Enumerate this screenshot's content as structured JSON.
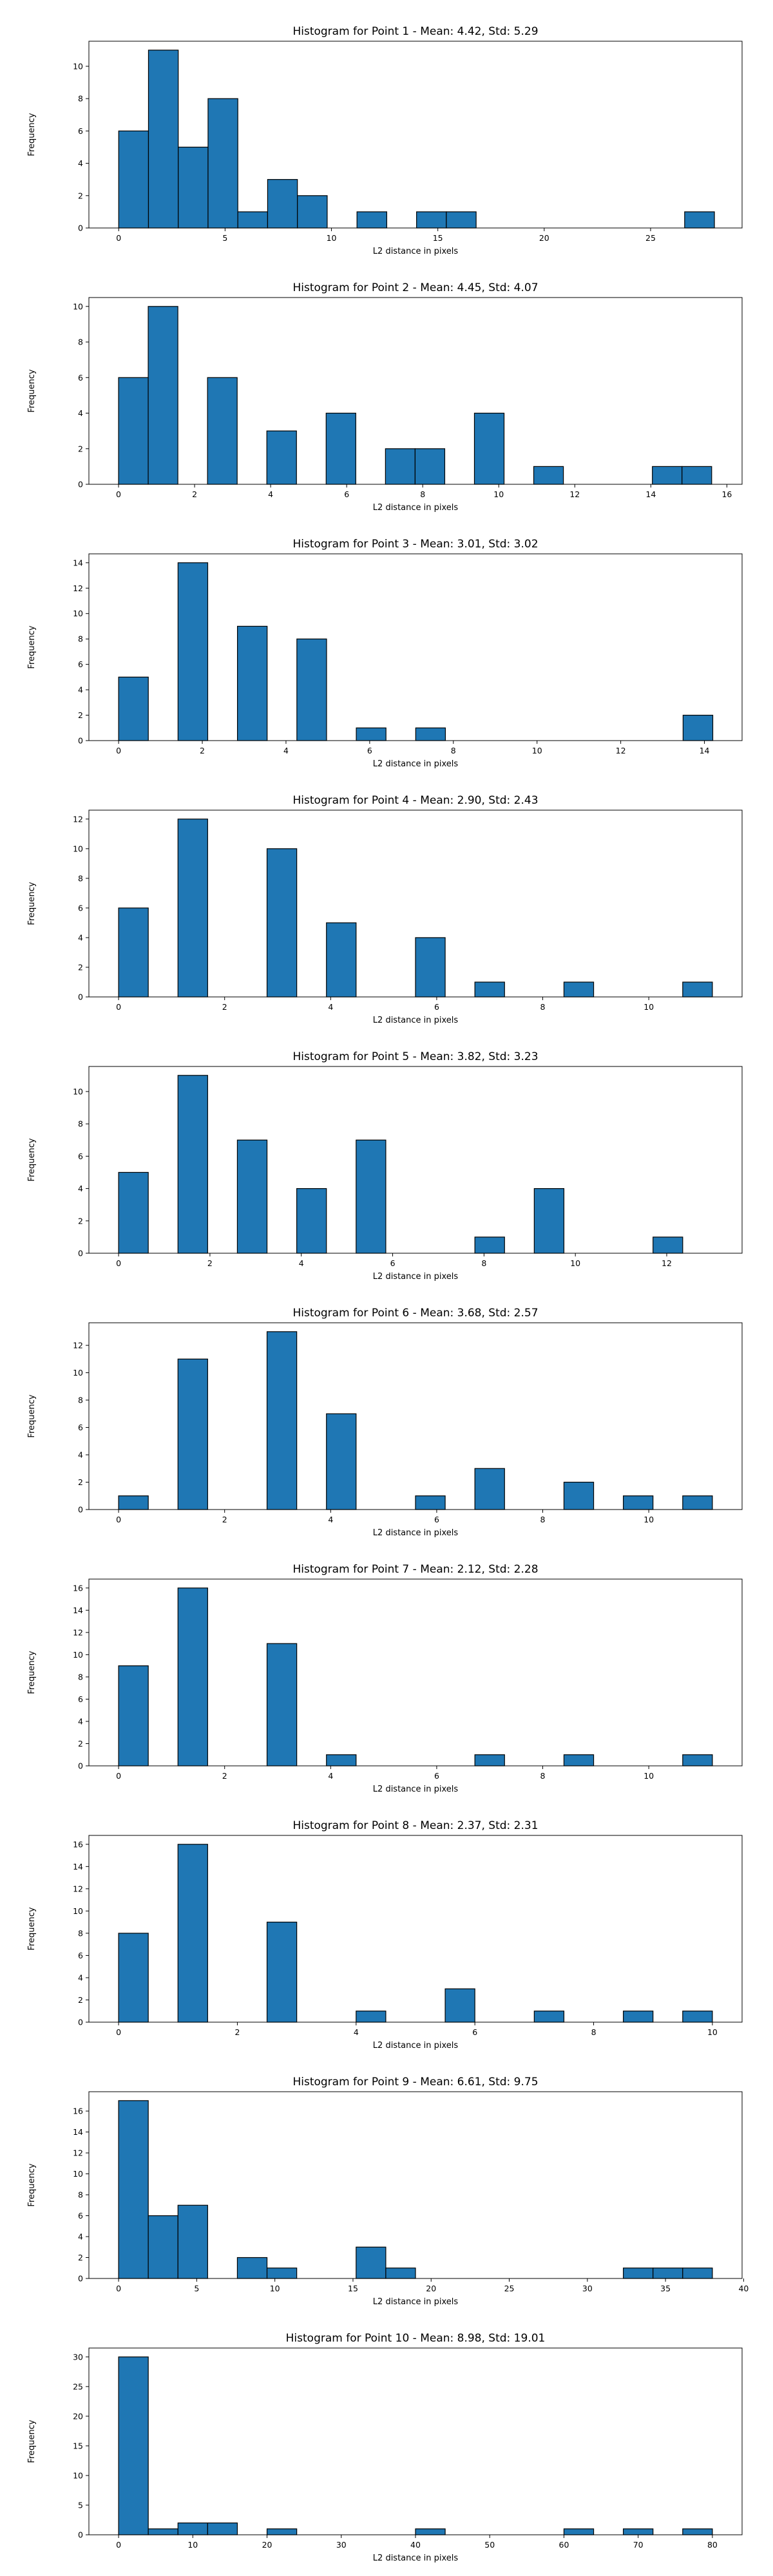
{
  "colors": {
    "bar": "#1f77b4",
    "edge": "#000000"
  },
  "chart_data": [
    {
      "type": "bar",
      "title": "Histogram for Point 1 - Mean: 4.42, Std: 5.29",
      "xlabel": "L2 distance in pixels",
      "ylabel": "Frequency",
      "xlim": [
        -1.4,
        29.3
      ],
      "ylim": [
        0,
        11.55
      ],
      "xticks": [
        0,
        5,
        10,
        15,
        20,
        25
      ],
      "yticks": [
        0,
        2,
        4,
        6,
        8,
        10
      ],
      "bin_edges": [
        0.0,
        1.4,
        2.8,
        4.2,
        5.6,
        7.0,
        8.4,
        9.8,
        11.2,
        12.6,
        14.0,
        15.4,
        16.8,
        18.2,
        19.6,
        21.0,
        22.4,
        23.8,
        25.2,
        26.6,
        28.0
      ],
      "values": [
        6,
        11,
        5,
        8,
        1,
        3,
        2,
        0,
        1,
        0,
        1,
        1,
        0,
        0,
        0,
        0,
        0,
        0,
        0,
        1
      ]
    },
    {
      "type": "bar",
      "title": "Histogram for Point 2 - Mean: 4.45, Std: 4.07",
      "xlabel": "L2 distance in pixels",
      "ylabel": "Frequency",
      "xlim": [
        -0.78,
        16.4
      ],
      "ylim": [
        0,
        10.5
      ],
      "xticks": [
        0,
        2,
        4,
        6,
        8,
        10,
        12,
        14,
        16
      ],
      "yticks": [
        0,
        2,
        4,
        6,
        8,
        10
      ],
      "bin_edges": [
        0.0,
        0.78,
        1.56,
        2.34,
        3.12,
        3.9,
        4.68,
        5.46,
        6.24,
        7.02,
        7.8,
        8.58,
        9.36,
        10.14,
        10.92,
        11.7,
        12.48,
        13.26,
        14.04,
        14.82,
        15.6
      ],
      "values": [
        6,
        10,
        0,
        6,
        0,
        3,
        0,
        4,
        0,
        2,
        2,
        0,
        4,
        0,
        1,
        0,
        0,
        0,
        1,
        1
      ]
    },
    {
      "type": "bar",
      "title": "Histogram for Point 3 - Mean: 3.01, Std: 3.02",
      "xlabel": "L2 distance in pixels",
      "ylabel": "Frequency",
      "xlim": [
        -0.71,
        14.9
      ],
      "ylim": [
        0,
        14.7
      ],
      "xticks": [
        0,
        2,
        4,
        6,
        8,
        10,
        12,
        14
      ],
      "yticks": [
        0,
        2,
        4,
        6,
        8,
        10,
        12,
        14
      ],
      "bin_edges": [
        0.0,
        0.71,
        1.42,
        2.13,
        2.84,
        3.55,
        4.26,
        4.97,
        5.68,
        6.39,
        7.1,
        7.81,
        8.52,
        9.23,
        9.94,
        10.65,
        11.36,
        12.07,
        12.78,
        13.49,
        14.2
      ],
      "values": [
        5,
        0,
        14,
        0,
        9,
        0,
        8,
        0,
        1,
        0,
        1,
        0,
        0,
        0,
        0,
        0,
        0,
        0,
        0,
        2
      ]
    },
    {
      "type": "bar",
      "title": "Histogram for Point 4 - Mean: 2.90, Std: 2.43",
      "xlabel": "L2 distance in pixels",
      "ylabel": "Frequency",
      "xlim": [
        -0.56,
        11.76
      ],
      "ylim": [
        0,
        12.6
      ],
      "xticks": [
        0,
        2,
        4,
        6,
        8,
        10
      ],
      "yticks": [
        0,
        2,
        4,
        6,
        8,
        10,
        12
      ],
      "bin_edges": [
        0.0,
        0.56,
        1.12,
        1.68,
        2.24,
        2.8,
        3.36,
        3.92,
        4.48,
        5.04,
        5.6,
        6.16,
        6.72,
        7.28,
        7.84,
        8.4,
        8.96,
        9.52,
        10.08,
        10.64,
        11.2
      ],
      "values": [
        6,
        0,
        12,
        0,
        0,
        10,
        0,
        5,
        0,
        0,
        4,
        0,
        1,
        0,
        0,
        1,
        0,
        0,
        0,
        1
      ]
    },
    {
      "type": "bar",
      "title": "Histogram for Point 5 - Mean: 3.82, Std: 3.23",
      "xlabel": "L2 distance in pixels",
      "ylabel": "Frequency",
      "xlim": [
        -0.65,
        13.65
      ],
      "ylim": [
        0,
        11.55
      ],
      "xticks": [
        0,
        2,
        4,
        6,
        8,
        10,
        12
      ],
      "yticks": [
        0,
        2,
        4,
        6,
        8,
        10
      ],
      "bin_edges": [
        0.0,
        0.65,
        1.3,
        1.95,
        2.6,
        3.25,
        3.9,
        4.55,
        5.2,
        5.85,
        6.5,
        7.15,
        7.8,
        8.45,
        9.1,
        9.75,
        10.4,
        11.05,
        11.7,
        12.35,
        13.0
      ],
      "values": [
        5,
        0,
        11,
        0,
        7,
        0,
        4,
        0,
        7,
        0,
        0,
        0,
        1,
        0,
        4,
        0,
        0,
        0,
        1,
        0
      ]
    },
    {
      "type": "bar",
      "title": "Histogram for Point 6 - Mean: 3.68, Std: 2.57",
      "xlabel": "L2 distance in pixels",
      "ylabel": "Frequency",
      "xlim": [
        -0.56,
        11.76
      ],
      "ylim": [
        0,
        13.65
      ],
      "xticks": [
        0,
        2,
        4,
        6,
        8,
        10
      ],
      "yticks": [
        0,
        2,
        4,
        6,
        8,
        10,
        12
      ],
      "bin_edges": [
        0.0,
        0.56,
        1.12,
        1.68,
        2.24,
        2.8,
        3.36,
        3.92,
        4.48,
        5.04,
        5.6,
        6.16,
        6.72,
        7.28,
        7.84,
        8.4,
        8.96,
        9.52,
        10.08,
        10.64,
        11.2
      ],
      "values": [
        1,
        0,
        11,
        0,
        0,
        13,
        0,
        7,
        0,
        0,
        1,
        0,
        3,
        0,
        0,
        2,
        0,
        1,
        0,
        1
      ]
    },
    {
      "type": "bar",
      "title": "Histogram for Point 7 - Mean: 2.12, Std: 2.28",
      "xlabel": "L2 distance in pixels",
      "ylabel": "Frequency",
      "xlim": [
        -0.56,
        11.76
      ],
      "ylim": [
        0,
        16.8
      ],
      "xticks": [
        0,
        2,
        4,
        6,
        8,
        10
      ],
      "yticks": [
        0,
        2,
        4,
        6,
        8,
        10,
        12,
        14,
        16
      ],
      "bin_edges": [
        0.0,
        0.56,
        1.12,
        1.68,
        2.24,
        2.8,
        3.36,
        3.92,
        4.48,
        5.04,
        5.6,
        6.16,
        6.72,
        7.28,
        7.84,
        8.4,
        8.96,
        9.52,
        10.08,
        10.64,
        11.2
      ],
      "values": [
        9,
        0,
        16,
        0,
        0,
        11,
        0,
        1,
        0,
        0,
        0,
        0,
        1,
        0,
        0,
        1,
        0,
        0,
        0,
        1
      ]
    },
    {
      "type": "bar",
      "title": "Histogram for Point 8 - Mean: 2.37, Std: 2.31",
      "xlabel": "L2 distance in pixels",
      "ylabel": "Frequency",
      "xlim": [
        -0.5,
        10.5
      ],
      "ylim": [
        0,
        16.8
      ],
      "xticks": [
        0,
        2,
        4,
        6,
        8,
        10
      ],
      "yticks": [
        0,
        2,
        4,
        6,
        8,
        10,
        12,
        14,
        16
      ],
      "bin_edges": [
        0.0,
        0.5,
        1.0,
        1.5,
        2.0,
        2.5,
        3.0,
        3.5,
        4.0,
        4.5,
        5.0,
        5.5,
        6.0,
        6.5,
        7.0,
        7.5,
        8.0,
        8.5,
        9.0,
        9.5,
        10.0
      ],
      "values": [
        8,
        0,
        16,
        0,
        0,
        9,
        0,
        0,
        1,
        0,
        0,
        3,
        0,
        0,
        1,
        0,
        0,
        1,
        0,
        1
      ]
    },
    {
      "type": "bar",
      "title": "Histogram for Point 9 - Mean: 6.61, Std: 9.75",
      "xlabel": "L2 distance in pixels",
      "ylabel": "Frequency",
      "xlim": [
        -1.9,
        39.9
      ],
      "ylim": [
        0,
        17.85
      ],
      "xticks": [
        0,
        5,
        10,
        15,
        20,
        25,
        30,
        35,
        40
      ],
      "yticks": [
        0,
        2,
        4,
        6,
        8,
        10,
        12,
        14,
        16
      ],
      "bin_edges": [
        0.0,
        1.9,
        3.8,
        5.7,
        7.6,
        9.5,
        11.4,
        13.3,
        15.2,
        17.1,
        19.0,
        20.9,
        22.8,
        24.7,
        26.6,
        28.5,
        30.4,
        32.3,
        34.2,
        36.1,
        38.0
      ],
      "values": [
        17,
        6,
        7,
        0,
        2,
        1,
        0,
        0,
        3,
        1,
        0,
        0,
        0,
        0,
        0,
        0,
        0,
        1,
        1,
        1
      ]
    },
    {
      "type": "bar",
      "title": "Histogram for Point 10 - Mean: 8.98, Std: 19.01",
      "xlabel": "L2 distance in pixels",
      "ylabel": "Frequency",
      "xlim": [
        -4.0,
        84.0
      ],
      "ylim": [
        0,
        31.5
      ],
      "xticks": [
        0,
        10,
        20,
        30,
        40,
        50,
        60,
        70,
        80
      ],
      "yticks": [
        0,
        5,
        10,
        15,
        20,
        25,
        30
      ],
      "bin_edges": [
        0.0,
        4.0,
        8.0,
        12.0,
        16.0,
        20.0,
        24.0,
        28.0,
        32.0,
        36.0,
        40.0,
        44.0,
        48.0,
        52.0,
        56.0,
        60.0,
        64.0,
        68.0,
        72.0,
        76.0,
        80.0
      ],
      "values": [
        30,
        1,
        2,
        2,
        0,
        1,
        0,
        0,
        0,
        0,
        1,
        0,
        0,
        0,
        0,
        1,
        0,
        1,
        0,
        1
      ]
    }
  ]
}
